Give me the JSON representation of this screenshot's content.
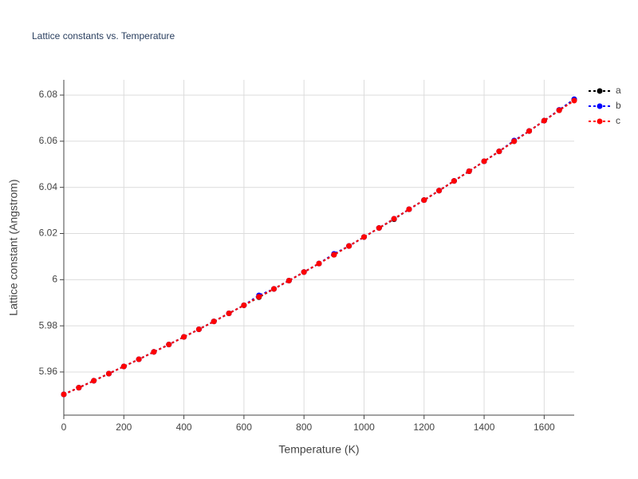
{
  "chart_data": {
    "type": "line",
    "title": "Lattice constants vs. Temperature",
    "x_label": "Temperature (K)",
    "y_label": "Lattice constant (Angstrom)",
    "x": [
      0,
      50,
      100,
      150,
      200,
      250,
      300,
      350,
      400,
      450,
      500,
      550,
      600,
      650,
      700,
      750,
      800,
      850,
      900,
      950,
      1000,
      1050,
      1100,
      1150,
      1200,
      1250,
      1300,
      1350,
      1400,
      1450,
      1500,
      1550,
      1600,
      1650,
      1700
    ],
    "series": [
      {
        "name": "a",
        "color": "#000000",
        "values": [
          5.9503,
          5.9532,
          5.9562,
          5.9593,
          5.9624,
          5.9655,
          5.9687,
          5.9719,
          5.9752,
          5.9785,
          5.9819,
          5.9854,
          5.9889,
          5.9924,
          5.996,
          5.9996,
          6.0033,
          6.007,
          6.0108,
          6.0146,
          6.0185,
          6.0224,
          6.0262,
          6.0305,
          6.0345,
          6.0386,
          6.0428,
          6.047,
          6.0513,
          6.0556,
          6.06,
          6.0644,
          6.0689,
          6.0734,
          6.078
        ]
      },
      {
        "name": "b",
        "color": "#0000ff",
        "values": [
          5.9503,
          5.9532,
          5.9562,
          5.9593,
          5.9624,
          5.9655,
          5.9687,
          5.9719,
          5.9752,
          5.9785,
          5.9819,
          5.9854,
          5.9889,
          5.9932,
          5.996,
          5.9996,
          6.0033,
          6.007,
          6.0112,
          6.0146,
          6.0185,
          6.0224,
          6.0264,
          6.0305,
          6.0345,
          6.0386,
          6.0428,
          6.047,
          6.0513,
          6.0556,
          6.0603,
          6.0644,
          6.0689,
          6.0736,
          6.0782
        ]
      },
      {
        "name": "c",
        "color": "#ff0000",
        "values": [
          5.9503,
          5.9532,
          5.9562,
          5.9593,
          5.9624,
          5.9655,
          5.9687,
          5.9719,
          5.9752,
          5.9785,
          5.9819,
          5.9854,
          5.9889,
          5.9926,
          5.996,
          5.9996,
          6.0033,
          6.007,
          6.0108,
          6.0146,
          6.0185,
          6.0224,
          6.0264,
          6.0305,
          6.0345,
          6.0386,
          6.0428,
          6.047,
          6.0513,
          6.0556,
          6.06,
          6.0644,
          6.0689,
          6.0734,
          6.0776
        ]
      }
    ],
    "xlim": [
      0,
      1700
    ],
    "xticks": [
      0,
      200,
      400,
      600,
      800,
      1000,
      1200,
      1400,
      1600
    ],
    "ylim": [
      5.9413,
      6.0866
    ],
    "yticks": [
      5.96,
      5.98,
      6,
      6.02,
      6.04,
      6.06,
      6.08
    ],
    "grid": true,
    "legend": "right"
  }
}
